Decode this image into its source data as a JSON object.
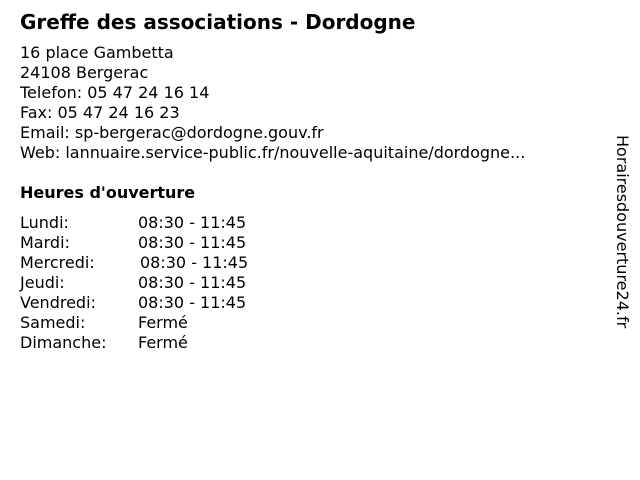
{
  "title": "Greffe des associations - Dordogne",
  "address": {
    "street": "16 place Gambetta",
    "city": "24108 Bergerac",
    "phone": "Telefon: 05 47 24 16 14",
    "fax": "Fax: 05 47 24 16 23",
    "email": "Email: sp-bergerac@dordogne.gouv.fr",
    "web": "Web: lannuaire.service-public.fr/nouvelle-aquitaine/dordogne..."
  },
  "hours_heading": "Heures d'ouverture",
  "hours": [
    {
      "day": "Lundi:",
      "time": "08:30 - 11:45"
    },
    {
      "day": "Mardi:",
      "time": "08:30 - 11:45"
    },
    {
      "day": "Mercredi:",
      "time": "08:30 - 11:45"
    },
    {
      "day": "Jeudi:",
      "time": "08:30 - 11:45"
    },
    {
      "day": "Vendredi:",
      "time": "08:30 - 11:45"
    },
    {
      "day": "Samedi:",
      "time": "Fermé"
    },
    {
      "day": "Dimanche:",
      "time": "Fermé"
    }
  ],
  "side_label": "Horairesdouverture24.fr"
}
